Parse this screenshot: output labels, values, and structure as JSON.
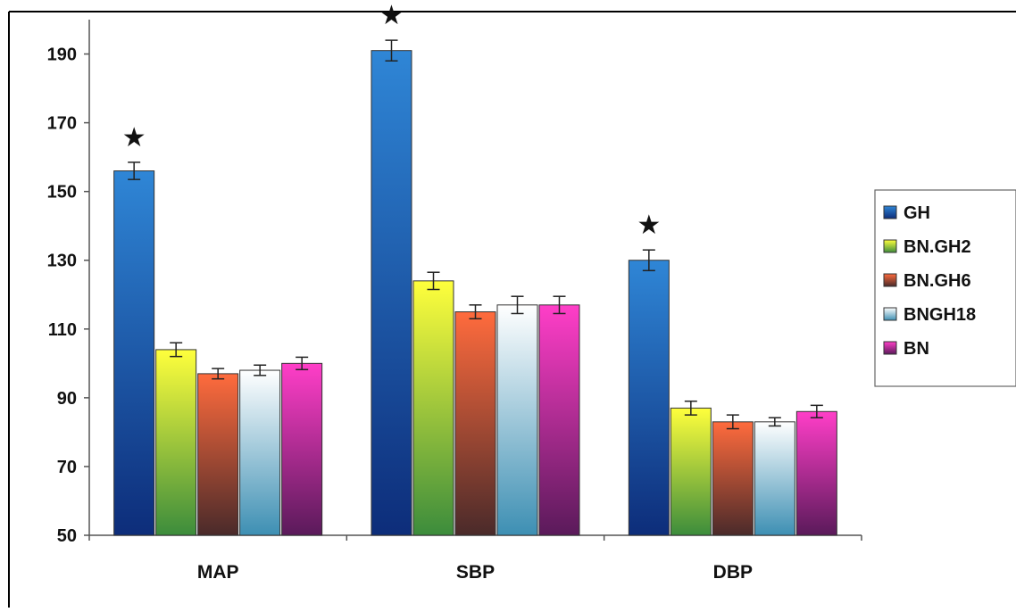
{
  "chart_data": {
    "type": "bar",
    "title": "",
    "xlabel": "",
    "ylabel": "",
    "ylim": [
      50,
      200
    ],
    "yticks": [
      50,
      70,
      90,
      110,
      130,
      150,
      170,
      190
    ],
    "categories": [
      "MAP",
      "SBP",
      "DBP"
    ],
    "legend_position": "right",
    "grid": false,
    "series": [
      {
        "name": "GH",
        "values": [
          156,
          191,
          130
        ],
        "errors": [
          2.5,
          3,
          3
        ],
        "color_top": "#2f86d6",
        "color_bottom": "#0d2d7a"
      },
      {
        "name": "BN.GH2",
        "values": [
          104,
          124,
          87
        ],
        "errors": [
          2,
          2.5,
          2
        ],
        "color_top": "#ffff3c",
        "color_bottom": "#3c8c3c"
      },
      {
        "name": "BN.GH6",
        "values": [
          97,
          115,
          83
        ],
        "errors": [
          1.5,
          2,
          2
        ],
        "color_top": "#ff6b3d",
        "color_bottom": "#4a2a2a"
      },
      {
        "name": "BNGH18",
        "values": [
          98,
          117,
          83
        ],
        "errors": [
          1.5,
          2.5,
          1.2
        ],
        "color_top": "#ffffff",
        "color_bottom": "#3d8fb3"
      },
      {
        "name": "BN",
        "values": [
          100,
          117,
          86
        ],
        "errors": [
          1.8,
          2.5,
          1.8
        ],
        "color_top": "#ff3ec8",
        "color_bottom": "#5a1a5a"
      }
    ],
    "significance_marker": "★",
    "significant_series": "GH"
  }
}
